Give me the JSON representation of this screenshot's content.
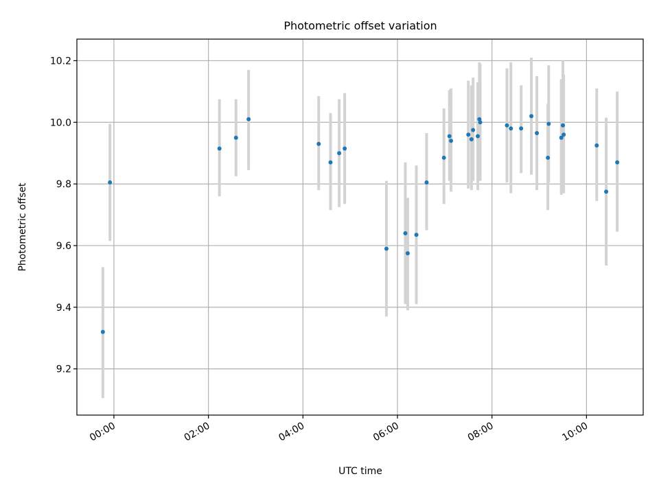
{
  "chart_data": {
    "type": "scatter",
    "title": "Photometric offset variation",
    "xlabel": "UTC time",
    "ylabel": "Photometric offset",
    "x_axis": "time",
    "xlim": [
      "-00:47",
      "11:12"
    ],
    "ylim": [
      9.05,
      10.27
    ],
    "x_ticks": [
      "00:00",
      "02:00",
      "04:00",
      "06:00",
      "08:00",
      "10:00"
    ],
    "y_ticks": [
      9.2,
      9.4,
      9.6,
      9.8,
      10.0,
      10.2
    ],
    "grid": true,
    "colors": {
      "points": "#1f77b4",
      "errorbars": "#d3d3d3",
      "grid": "#b0b0b0"
    },
    "series": [
      {
        "points": [
          {
            "x": "23:46",
            "y": 9.32,
            "ylow": 9.105,
            "yhigh": 9.53
          },
          {
            "x": "23:55",
            "y": 9.805,
            "ylow": 9.615,
            "yhigh": 9.995
          },
          {
            "x": "02:14",
            "y": 9.915,
            "ylow": 9.76,
            "yhigh": 10.075
          },
          {
            "x": "02:35",
            "y": 9.95,
            "ylow": 9.825,
            "yhigh": 10.075
          },
          {
            "x": "02:51",
            "y": 10.01,
            "ylow": 9.845,
            "yhigh": 10.17
          },
          {
            "x": "04:20",
            "y": 9.93,
            "ylow": 9.78,
            "yhigh": 10.085
          },
          {
            "x": "04:35",
            "y": 9.87,
            "ylow": 9.715,
            "yhigh": 10.03
          },
          {
            "x": "04:46",
            "y": 9.9,
            "ylow": 9.725,
            "yhigh": 10.075
          },
          {
            "x": "04:53",
            "y": 9.915,
            "ylow": 9.735,
            "yhigh": 10.095
          },
          {
            "x": "05:46",
            "y": 9.59,
            "ylow": 9.37,
            "yhigh": 9.81
          },
          {
            "x": "06:10",
            "y": 9.64,
            "ylow": 9.41,
            "yhigh": 9.87
          },
          {
            "x": "06:13",
            "y": 9.575,
            "ylow": 9.39,
            "yhigh": 9.755
          },
          {
            "x": "06:24",
            "y": 9.635,
            "ylow": 9.41,
            "yhigh": 9.86
          },
          {
            "x": "06:37",
            "y": 9.805,
            "ylow": 9.65,
            "yhigh": 9.965
          },
          {
            "x": "06:59",
            "y": 9.885,
            "ylow": 9.735,
            "yhigh": 10.045
          },
          {
            "x": "07:06",
            "y": 9.955,
            "ylow": 9.81,
            "yhigh": 10.105
          },
          {
            "x": "07:08",
            "y": 9.94,
            "ylow": 9.775,
            "yhigh": 10.11
          },
          {
            "x": "07:30",
            "y": 9.96,
            "ylow": 9.785,
            "yhigh": 10.135
          },
          {
            "x": "07:34",
            "y": 9.945,
            "ylow": 9.78,
            "yhigh": 10.12
          },
          {
            "x": "07:36",
            "y": 9.975,
            "ylow": 9.81,
            "yhigh": 10.145
          },
          {
            "x": "07:42",
            "y": 9.955,
            "ylow": 9.78,
            "yhigh": 10.13
          },
          {
            "x": "07:44",
            "y": 10.01,
            "ylow": 9.82,
            "yhigh": 10.195
          },
          {
            "x": "07:45",
            "y": 10.0,
            "ylow": 9.81,
            "yhigh": 10.19
          },
          {
            "x": "08:19",
            "y": 9.99,
            "ylow": 9.805,
            "yhigh": 10.175
          },
          {
            "x": "08:24",
            "y": 9.98,
            "ylow": 9.77,
            "yhigh": 10.195
          },
          {
            "x": "08:37",
            "y": 9.98,
            "ylow": 9.835,
            "yhigh": 10.12
          },
          {
            "x": "08:50",
            "y": 10.02,
            "ylow": 9.83,
            "yhigh": 10.21
          },
          {
            "x": "08:57",
            "y": 9.965,
            "ylow": 9.78,
            "yhigh": 10.15
          },
          {
            "x": "09:11",
            "y": 9.885,
            "ylow": 9.715,
            "yhigh": 10.06
          },
          {
            "x": "09:12",
            "y": 9.995,
            "ylow": 9.805,
            "yhigh": 10.185
          },
          {
            "x": "09:28",
            "y": 9.95,
            "ylow": 9.765,
            "yhigh": 10.14
          },
          {
            "x": "09:30",
            "y": 9.99,
            "ylow": 9.77,
            "yhigh": 10.2
          },
          {
            "x": "09:31",
            "y": 9.96,
            "ylow": 9.77,
            "yhigh": 10.155
          },
          {
            "x": "10:13",
            "y": 9.925,
            "ylow": 9.745,
            "yhigh": 10.11
          },
          {
            "x": "10:25",
            "y": 9.775,
            "ylow": 9.535,
            "yhigh": 10.015
          },
          {
            "x": "10:39",
            "y": 9.87,
            "ylow": 9.645,
            "yhigh": 10.1
          }
        ]
      }
    ]
  }
}
